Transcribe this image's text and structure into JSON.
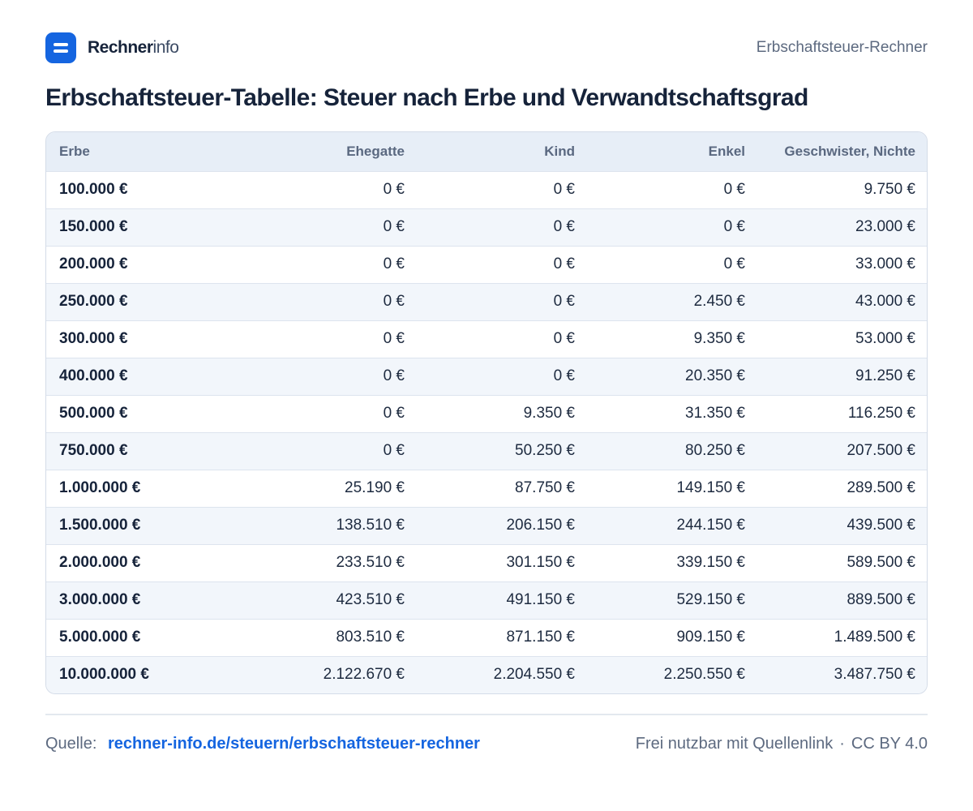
{
  "brand": {
    "name_bold": "Rechner",
    "name_light": "info"
  },
  "header": {
    "right_label": "Erbschaftsteuer-Rechner"
  },
  "page_title": "Erbschaftsteuer-Tabelle: Steuer nach Erbe und Verwandtschaftsgrad",
  "table": {
    "columns": [
      "Erbe",
      "Ehegatte",
      "Kind",
      "Enkel",
      "Geschwister, Nichte"
    ],
    "rows": [
      [
        "100.000 €",
        "0 €",
        "0 €",
        "0 €",
        "9.750 €"
      ],
      [
        "150.000 €",
        "0 €",
        "0 €",
        "0 €",
        "23.000 €"
      ],
      [
        "200.000 €",
        "0 €",
        "0 €",
        "0 €",
        "33.000 €"
      ],
      [
        "250.000 €",
        "0 €",
        "0 €",
        "2.450 €",
        "43.000 €"
      ],
      [
        "300.000 €",
        "0 €",
        "0 €",
        "9.350 €",
        "53.000 €"
      ],
      [
        "400.000 €",
        "0 €",
        "0 €",
        "20.350 €",
        "91.250 €"
      ],
      [
        "500.000 €",
        "0 €",
        "9.350 €",
        "31.350 €",
        "116.250 €"
      ],
      [
        "750.000 €",
        "0 €",
        "50.250 €",
        "80.250 €",
        "207.500 €"
      ],
      [
        "1.000.000 €",
        "25.190 €",
        "87.750 €",
        "149.150 €",
        "289.500 €"
      ],
      [
        "1.500.000 €",
        "138.510 €",
        "206.150 €",
        "244.150 €",
        "439.500 €"
      ],
      [
        "2.000.000 €",
        "233.510 €",
        "301.150 €",
        "339.150 €",
        "589.500 €"
      ],
      [
        "3.000.000 €",
        "423.510 €",
        "491.150 €",
        "529.150 €",
        "889.500 €"
      ],
      [
        "5.000.000 €",
        "803.510 €",
        "871.150 €",
        "909.150 €",
        "1.489.500 €"
      ],
      [
        "10.000.000 €",
        "2.122.670 €",
        "2.204.550 €",
        "2.250.550 €",
        "3.487.750 €"
      ]
    ]
  },
  "footer": {
    "source_label": "Quelle:",
    "source_link": "rechner-info.de/steuern/erbschaftsteuer-rechner",
    "license_text": "Frei nutzbar mit Quellenlink",
    "separator": "·",
    "license": "CC BY 4.0"
  },
  "colors": {
    "accent": "#1565e0",
    "header_row": "#e7eef7",
    "alt_row": "#f2f6fb"
  }
}
